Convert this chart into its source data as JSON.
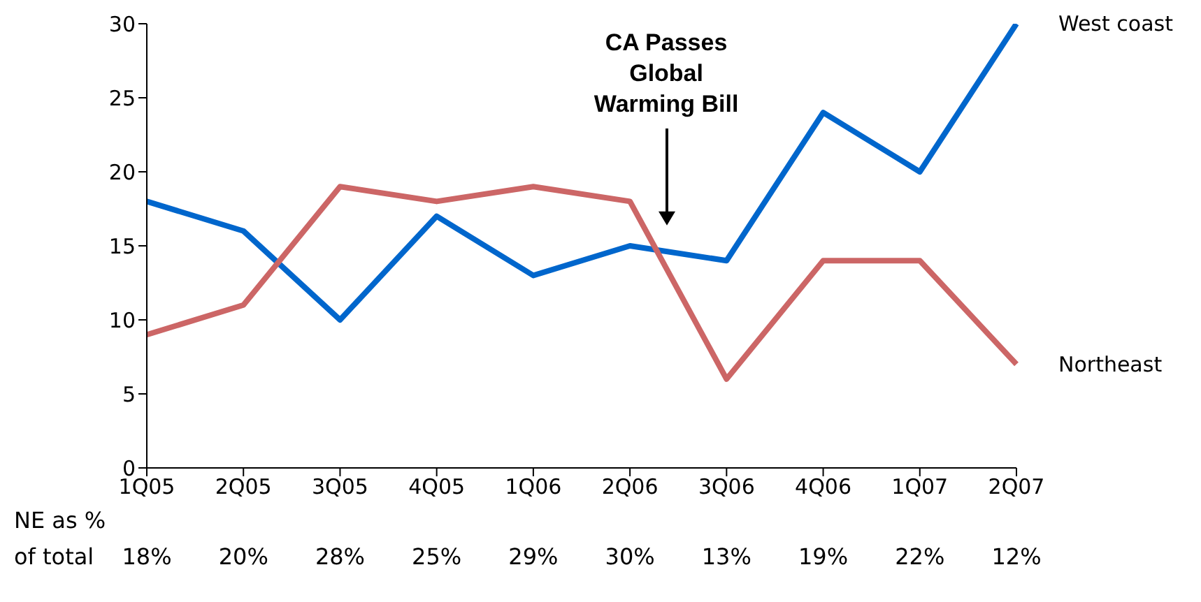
{
  "chart_data": {
    "type": "line",
    "categories": [
      "1Q05",
      "2Q05",
      "3Q05",
      "4Q05",
      "1Q06",
      "2Q06",
      "3Q06",
      "4Q06",
      "1Q07",
      "2Q07"
    ],
    "series": [
      {
        "name": "West coast",
        "color": "#0066cc",
        "values": [
          18,
          16,
          10,
          17,
          13,
          15,
          14,
          24,
          20,
          30
        ]
      },
      {
        "name": "Northeast",
        "color": "#cc6666",
        "values": [
          9,
          11,
          19,
          18,
          19,
          18,
          6,
          14,
          14,
          7
        ]
      }
    ],
    "ylim": [
      0,
      30
    ],
    "yticks": [
      0,
      5,
      10,
      15,
      20,
      25,
      30
    ],
    "grid": false,
    "legend": false,
    "marker": "none",
    "line_style": "solid",
    "annotations": [
      "CA Passes Global Warming Bill",
      "NE as % of total",
      "18%",
      "20%",
      "28%",
      "25%",
      "29%",
      "30%",
      "13%",
      "19%",
      "22%",
      "12%"
    ]
  }
}
